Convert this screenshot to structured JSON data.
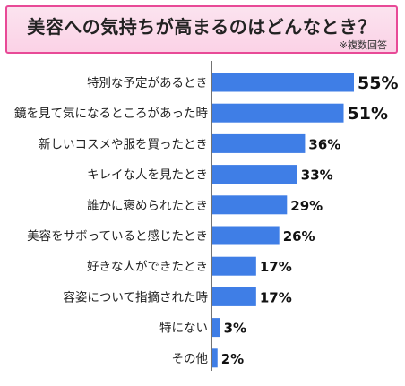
{
  "title": "美容への気持ちが高まるのはどんなとき？",
  "note": "※複数回答",
  "colors": {
    "bar": "#3f7ee6",
    "axis": "#444444",
    "title_border": "#e84a97",
    "title_bg": "#fbd8ea"
  },
  "chart_data": {
    "type": "bar",
    "orientation": "horizontal",
    "title": "美容への気持ちが高まるのはどんなとき？",
    "categories": [
      "特別な予定があるとき",
      "鏡を見て気になるところがあった時",
      "新しいコスメや服を買ったとき",
      "キレイな人を見たとき",
      "誰かに褒められたとき",
      "美容をサボっていると感じたとき",
      "好きな人ができたとき",
      "容姿について指摘された時",
      "特にない",
      "その他"
    ],
    "values": [
      55,
      51,
      36,
      33,
      29,
      26,
      17,
      17,
      3,
      2
    ],
    "value_labels": [
      "55%",
      "51%",
      "36%",
      "33%",
      "29%",
      "26%",
      "17%",
      "17%",
      "3%",
      "2%"
    ],
    "unit": "%",
    "xlim": [
      0,
      60
    ],
    "grid": false,
    "legend": "none"
  }
}
